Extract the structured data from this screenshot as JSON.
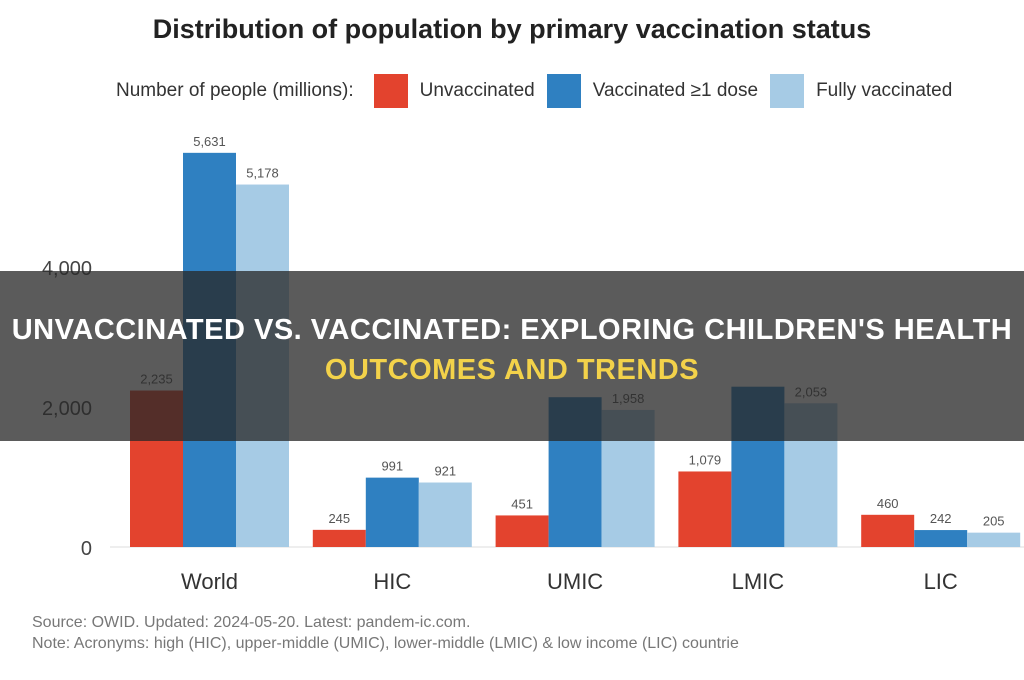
{
  "chart_data": {
    "type": "bar",
    "title": "Distribution of population by primary vaccination status",
    "legend_title": "Number of people (millions):",
    "legend_position": "top",
    "categories": [
      "World",
      "HIC",
      "UMIC",
      "LMIC",
      "LIC"
    ],
    "series": [
      {
        "name": "Unvaccinated",
        "color": "#e3432e",
        "values": [
          2235,
          245,
          451,
          1079,
          460
        ],
        "labels": [
          "2,235",
          "245",
          "451",
          "1,079",
          "460"
        ]
      },
      {
        "name": "Vaccinated ≥1 dose",
        "color": "#2f80c1",
        "values": [
          5631,
          991,
          2140,
          2290,
          242
        ],
        "labels": [
          "5,631",
          "991",
          "",
          "",
          "242"
        ]
      },
      {
        "name": "Fully vaccinated",
        "color": "#a6cbe5",
        "values": [
          5178,
          921,
          1958,
          2053,
          205
        ],
        "labels": [
          "5,178",
          "921",
          "1,958",
          "2,053",
          "205"
        ]
      }
    ],
    "y_ticks": [
      0,
      2000,
      4000
    ],
    "y_tick_labels": [
      "0",
      "2,000",
      "4,000"
    ],
    "ylim": [
      0,
      5900
    ],
    "grid": false,
    "xlabel": "",
    "ylabel": ""
  },
  "footer": {
    "source": "Source: OWID. Updated: 2024-05-20. Latest: pandem-ic.com.",
    "note": "Note: Acronyms: high (HIC), upper-middle (UMIC), lower-middle (LMIC) & low income (LIC) countrie"
  },
  "headline": {
    "line1": "Unvaccinated Vs. Vaccinated: Exploring Children's Health",
    "line2": "Outcomes And Trends"
  }
}
